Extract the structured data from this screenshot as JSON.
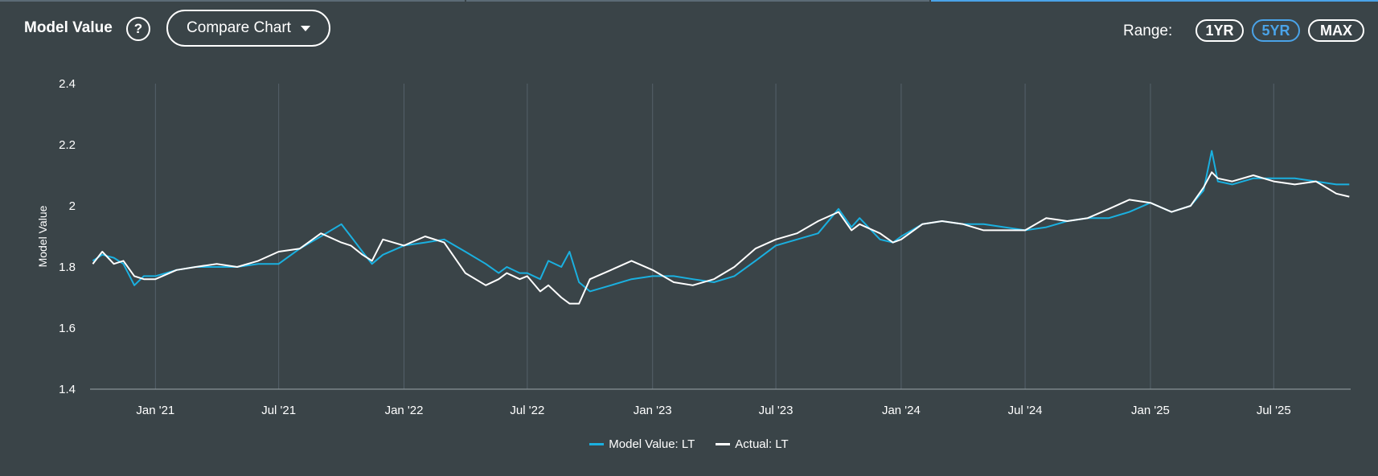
{
  "header": {
    "title": "Model Value",
    "help_glyph": "?",
    "compare_label": "Compare Chart",
    "range_label": "Range:",
    "ranges": [
      {
        "label": "1YR",
        "active": false
      },
      {
        "label": "5YR",
        "active": true
      },
      {
        "label": "MAX",
        "active": false
      }
    ]
  },
  "colors": {
    "background": "#3a4448",
    "model": "#1ab0e0",
    "actual": "#ffffff",
    "active_range": "#4aa3e8",
    "grid": "#55616a",
    "topbar_dim": "#5b6b76",
    "topbar_accent": "#4aa3e8"
  },
  "chart_data": {
    "type": "line",
    "ylabel": "Model Value",
    "ylim": [
      1.4,
      2.4
    ],
    "yticks": [
      1.4,
      1.6,
      1.8,
      2,
      2.2,
      2.4
    ],
    "ytick_labels": [
      "1.4",
      "1.6",
      "1.8",
      "2",
      "2.2",
      "2.4"
    ],
    "xlim": [
      "2020-09-27",
      "2025-10-22"
    ],
    "xticks": [
      "2021-01-01",
      "2021-07-01",
      "2022-01-01",
      "2022-07-01",
      "2023-01-01",
      "2023-07-01",
      "2024-01-01",
      "2024-07-01",
      "2025-01-01",
      "2025-07-01"
    ],
    "xtick_labels": [
      "Jan '21",
      "Jul '21",
      "Jan '22",
      "Jul '22",
      "Jan '23",
      "Jul '23",
      "Jan '24",
      "Jul '24",
      "Jan '25",
      "Jul '25"
    ],
    "grid": "vertical",
    "legend_position": "bottom-center",
    "series": [
      {
        "name": "Model Value: LT",
        "color": "#1ab0e0",
        "points": [
          [
            "2020-10-01",
            1.82
          ],
          [
            "2020-10-15",
            1.84
          ],
          [
            "2020-11-01",
            1.83
          ],
          [
            "2020-11-15",
            1.81
          ],
          [
            "2020-12-01",
            1.74
          ],
          [
            "2020-12-15",
            1.77
          ],
          [
            "2021-01-01",
            1.77
          ],
          [
            "2021-02-01",
            1.79
          ],
          [
            "2021-03-01",
            1.8
          ],
          [
            "2021-04-01",
            1.8
          ],
          [
            "2021-05-01",
            1.8
          ],
          [
            "2021-06-01",
            1.81
          ],
          [
            "2021-07-01",
            1.81
          ],
          [
            "2021-08-01",
            1.86
          ],
          [
            "2021-09-01",
            1.9
          ],
          [
            "2021-10-01",
            1.94
          ],
          [
            "2021-10-15",
            1.9
          ],
          [
            "2021-11-01",
            1.85
          ],
          [
            "2021-11-15",
            1.81
          ],
          [
            "2021-12-01",
            1.84
          ],
          [
            "2022-01-01",
            1.87
          ],
          [
            "2022-02-01",
            1.88
          ],
          [
            "2022-03-01",
            1.89
          ],
          [
            "2022-04-01",
            1.85
          ],
          [
            "2022-05-01",
            1.81
          ],
          [
            "2022-05-20",
            1.78
          ],
          [
            "2022-06-01",
            1.8
          ],
          [
            "2022-06-20",
            1.78
          ],
          [
            "2022-07-01",
            1.78
          ],
          [
            "2022-07-20",
            1.76
          ],
          [
            "2022-08-01",
            1.82
          ],
          [
            "2022-08-20",
            1.8
          ],
          [
            "2022-09-01",
            1.85
          ],
          [
            "2022-09-15",
            1.75
          ],
          [
            "2022-10-01",
            1.72
          ],
          [
            "2022-11-01",
            1.74
          ],
          [
            "2022-12-01",
            1.76
          ],
          [
            "2023-01-01",
            1.77
          ],
          [
            "2023-02-01",
            1.77
          ],
          [
            "2023-03-01",
            1.76
          ],
          [
            "2023-04-01",
            1.75
          ],
          [
            "2023-05-01",
            1.77
          ],
          [
            "2023-06-01",
            1.82
          ],
          [
            "2023-07-01",
            1.87
          ],
          [
            "2023-08-01",
            1.89
          ],
          [
            "2023-09-01",
            1.91
          ],
          [
            "2023-10-01",
            1.99
          ],
          [
            "2023-10-20",
            1.93
          ],
          [
            "2023-11-01",
            1.96
          ],
          [
            "2023-12-01",
            1.89
          ],
          [
            "2023-12-20",
            1.88
          ],
          [
            "2024-01-01",
            1.9
          ],
          [
            "2024-02-01",
            1.94
          ],
          [
            "2024-03-01",
            1.95
          ],
          [
            "2024-04-01",
            1.94
          ],
          [
            "2024-05-01",
            1.94
          ],
          [
            "2024-06-01",
            1.93
          ],
          [
            "2024-07-01",
            1.92
          ],
          [
            "2024-08-01",
            1.93
          ],
          [
            "2024-09-01",
            1.95
          ],
          [
            "2024-10-01",
            1.96
          ],
          [
            "2024-11-01",
            1.96
          ],
          [
            "2024-12-01",
            1.98
          ],
          [
            "2025-01-01",
            2.01
          ],
          [
            "2025-02-01",
            1.98
          ],
          [
            "2025-03-01",
            2.0
          ],
          [
            "2025-03-20",
            2.05
          ],
          [
            "2025-04-01",
            2.18
          ],
          [
            "2025-04-10",
            2.08
          ],
          [
            "2025-05-01",
            2.07
          ],
          [
            "2025-06-01",
            2.09
          ],
          [
            "2025-07-01",
            2.09
          ],
          [
            "2025-08-01",
            2.09
          ],
          [
            "2025-09-01",
            2.08
          ],
          [
            "2025-10-01",
            2.07
          ],
          [
            "2025-10-20",
            2.07
          ]
        ]
      },
      {
        "name": "Actual: LT",
        "color": "#ffffff",
        "points": [
          [
            "2020-10-01",
            1.81
          ],
          [
            "2020-10-15",
            1.85
          ],
          [
            "2020-11-01",
            1.81
          ],
          [
            "2020-11-15",
            1.82
          ],
          [
            "2020-12-01",
            1.77
          ],
          [
            "2020-12-15",
            1.76
          ],
          [
            "2021-01-01",
            1.76
          ],
          [
            "2021-02-01",
            1.79
          ],
          [
            "2021-03-01",
            1.8
          ],
          [
            "2021-04-01",
            1.81
          ],
          [
            "2021-05-01",
            1.8
          ],
          [
            "2021-06-01",
            1.82
          ],
          [
            "2021-07-01",
            1.85
          ],
          [
            "2021-08-01",
            1.86
          ],
          [
            "2021-09-01",
            1.91
          ],
          [
            "2021-10-01",
            1.88
          ],
          [
            "2021-10-15",
            1.87
          ],
          [
            "2021-11-01",
            1.84
          ],
          [
            "2021-11-15",
            1.82
          ],
          [
            "2021-12-01",
            1.89
          ],
          [
            "2022-01-01",
            1.87
          ],
          [
            "2022-02-01",
            1.9
          ],
          [
            "2022-03-01",
            1.88
          ],
          [
            "2022-04-01",
            1.78
          ],
          [
            "2022-05-01",
            1.74
          ],
          [
            "2022-05-20",
            1.76
          ],
          [
            "2022-06-01",
            1.78
          ],
          [
            "2022-06-20",
            1.76
          ],
          [
            "2022-07-01",
            1.77
          ],
          [
            "2022-07-20",
            1.72
          ],
          [
            "2022-08-01",
            1.74
          ],
          [
            "2022-08-20",
            1.7
          ],
          [
            "2022-09-01",
            1.68
          ],
          [
            "2022-09-15",
            1.68
          ],
          [
            "2022-10-01",
            1.76
          ],
          [
            "2022-11-01",
            1.79
          ],
          [
            "2022-12-01",
            1.82
          ],
          [
            "2023-01-01",
            1.79
          ],
          [
            "2023-02-01",
            1.75
          ],
          [
            "2023-03-01",
            1.74
          ],
          [
            "2023-04-01",
            1.76
          ],
          [
            "2023-05-01",
            1.8
          ],
          [
            "2023-06-01",
            1.86
          ],
          [
            "2023-07-01",
            1.89
          ],
          [
            "2023-08-01",
            1.91
          ],
          [
            "2023-09-01",
            1.95
          ],
          [
            "2023-10-01",
            1.98
          ],
          [
            "2023-10-20",
            1.92
          ],
          [
            "2023-11-01",
            1.94
          ],
          [
            "2023-12-01",
            1.91
          ],
          [
            "2023-12-20",
            1.88
          ],
          [
            "2024-01-01",
            1.89
          ],
          [
            "2024-02-01",
            1.94
          ],
          [
            "2024-03-01",
            1.95
          ],
          [
            "2024-04-01",
            1.94
          ],
          [
            "2024-05-01",
            1.92
          ],
          [
            "2024-06-01",
            1.92
          ],
          [
            "2024-07-01",
            1.92
          ],
          [
            "2024-08-01",
            1.96
          ],
          [
            "2024-09-01",
            1.95
          ],
          [
            "2024-10-01",
            1.96
          ],
          [
            "2024-11-01",
            1.99
          ],
          [
            "2024-12-01",
            2.02
          ],
          [
            "2025-01-01",
            2.01
          ],
          [
            "2025-02-01",
            1.98
          ],
          [
            "2025-03-01",
            2.0
          ],
          [
            "2025-03-20",
            2.06
          ],
          [
            "2025-04-01",
            2.11
          ],
          [
            "2025-04-10",
            2.09
          ],
          [
            "2025-05-01",
            2.08
          ],
          [
            "2025-06-01",
            2.1
          ],
          [
            "2025-07-01",
            2.08
          ],
          [
            "2025-08-01",
            2.07
          ],
          [
            "2025-09-01",
            2.08
          ],
          [
            "2025-10-01",
            2.04
          ],
          [
            "2025-10-20",
            2.03
          ]
        ]
      }
    ]
  }
}
